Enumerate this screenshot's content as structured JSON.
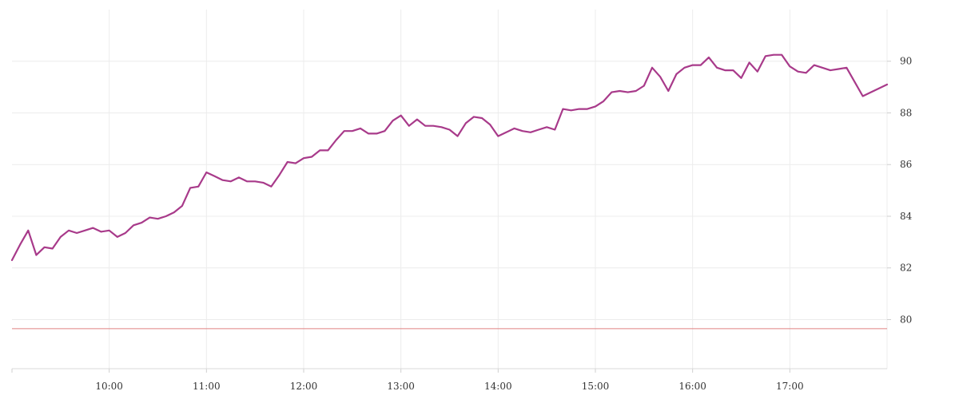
{
  "chart_data": {
    "type": "line",
    "title": "",
    "xlabel": "",
    "ylabel": "",
    "x_ticks": [
      "10:00",
      "11:00",
      "12:00",
      "13:00",
      "14:00",
      "15:00",
      "16:00",
      "17:00"
    ],
    "y_ticks": [
      80,
      82,
      84,
      86,
      88,
      90
    ],
    "xlim": [
      "09:00",
      "18:00"
    ],
    "ylim": [
      78.1,
      92
    ],
    "grid": true,
    "legend": "none",
    "y_axis_side": "right",
    "series": [
      {
        "color": "#a83a8a",
        "points": [
          [
            "09:00",
            82.3
          ],
          [
            "09:05",
            82.9
          ],
          [
            "09:10",
            83.45
          ],
          [
            "09:15",
            82.5
          ],
          [
            "09:20",
            82.8
          ],
          [
            "09:25",
            82.75
          ],
          [
            "09:30",
            83.2
          ],
          [
            "09:35",
            83.45
          ],
          [
            "09:40",
            83.35
          ],
          [
            "09:45",
            83.45
          ],
          [
            "09:50",
            83.55
          ],
          [
            "09:55",
            83.4
          ],
          [
            "10:00",
            83.45
          ],
          [
            "10:05",
            83.2
          ],
          [
            "10:10",
            83.35
          ],
          [
            "10:15",
            83.65
          ],
          [
            "10:20",
            83.75
          ],
          [
            "10:25",
            83.95
          ],
          [
            "10:30",
            83.9
          ],
          [
            "10:35",
            84.0
          ],
          [
            "10:40",
            84.15
          ],
          [
            "10:45",
            84.4
          ],
          [
            "10:50",
            85.1
          ],
          [
            "10:55",
            85.15
          ],
          [
            "11:00",
            85.7
          ],
          [
            "11:05",
            85.55
          ],
          [
            "11:10",
            85.4
          ],
          [
            "11:15",
            85.35
          ],
          [
            "11:20",
            85.5
          ],
          [
            "11:25",
            85.35
          ],
          [
            "11:30",
            85.35
          ],
          [
            "11:35",
            85.3
          ],
          [
            "11:40",
            85.15
          ],
          [
            "11:45",
            85.6
          ],
          [
            "11:50",
            86.1
          ],
          [
            "11:55",
            86.05
          ],
          [
            "12:00",
            86.25
          ],
          [
            "12:05",
            86.3
          ],
          [
            "12:10",
            86.55
          ],
          [
            "12:15",
            86.55
          ],
          [
            "12:20",
            86.95
          ],
          [
            "12:25",
            87.3
          ],
          [
            "12:30",
            87.3
          ],
          [
            "12:35",
            87.4
          ],
          [
            "12:40",
            87.2
          ],
          [
            "12:45",
            87.2
          ],
          [
            "12:50",
            87.3
          ],
          [
            "12:55",
            87.7
          ],
          [
            "13:00",
            87.9
          ],
          [
            "13:05",
            87.5
          ],
          [
            "13:10",
            87.75
          ],
          [
            "13:15",
            87.5
          ],
          [
            "13:20",
            87.5
          ],
          [
            "13:25",
            87.45
          ],
          [
            "13:30",
            87.35
          ],
          [
            "13:35",
            87.1
          ],
          [
            "13:40",
            87.6
          ],
          [
            "13:45",
            87.85
          ],
          [
            "13:50",
            87.8
          ],
          [
            "13:55",
            87.55
          ],
          [
            "14:00",
            87.1
          ],
          [
            "14:05",
            87.25
          ],
          [
            "14:10",
            87.4
          ],
          [
            "14:15",
            87.3
          ],
          [
            "14:20",
            87.25
          ],
          [
            "14:25",
            87.35
          ],
          [
            "14:30",
            87.45
          ],
          [
            "14:35",
            87.35
          ],
          [
            "14:40",
            88.15
          ],
          [
            "14:45",
            88.1
          ],
          [
            "14:50",
            88.15
          ],
          [
            "14:55",
            88.15
          ],
          [
            "15:00",
            88.25
          ],
          [
            "15:05",
            88.45
          ],
          [
            "15:10",
            88.8
          ],
          [
            "15:15",
            88.85
          ],
          [
            "15:20",
            88.8
          ],
          [
            "15:25",
            88.85
          ],
          [
            "15:30",
            89.05
          ],
          [
            "15:35",
            89.75
          ],
          [
            "15:40",
            89.4
          ],
          [
            "15:45",
            88.85
          ],
          [
            "15:50",
            89.5
          ],
          [
            "15:55",
            89.75
          ],
          [
            "16:00",
            89.85
          ],
          [
            "16:05",
            89.85
          ],
          [
            "16:10",
            90.15
          ],
          [
            "16:15",
            89.75
          ],
          [
            "16:20",
            89.65
          ],
          [
            "16:25",
            89.65
          ],
          [
            "16:30",
            89.35
          ],
          [
            "16:35",
            89.95
          ],
          [
            "16:40",
            89.6
          ],
          [
            "16:45",
            90.2
          ],
          [
            "16:50",
            90.25
          ],
          [
            "16:55",
            90.25
          ],
          [
            "17:00",
            89.8
          ],
          [
            "17:05",
            89.6
          ],
          [
            "17:10",
            89.55
          ],
          [
            "17:15",
            89.85
          ],
          [
            "17:20",
            89.75
          ],
          [
            "17:25",
            89.65
          ],
          [
            "17:30",
            89.7
          ],
          [
            "17:35",
            89.75
          ],
          [
            "17:40",
            89.2
          ],
          [
            "17:45",
            88.65
          ],
          [
            "17:50",
            88.8
          ],
          [
            "17:55",
            88.95
          ],
          [
            "18:00",
            89.1
          ]
        ]
      }
    ],
    "reference_line": {
      "y": 79.65,
      "color": "#e08080"
    }
  }
}
